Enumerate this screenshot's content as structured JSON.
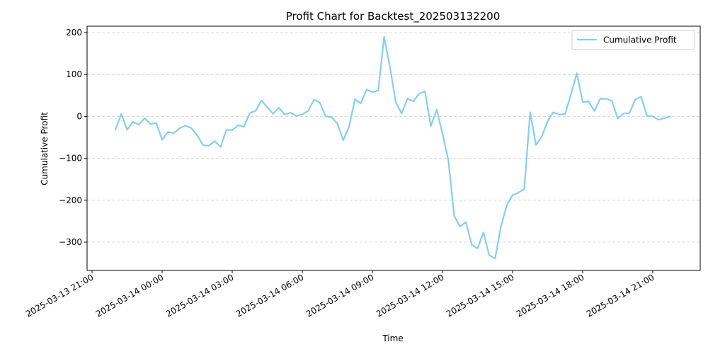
{
  "chart_data": {
    "type": "line",
    "title": "Profit Chart for Backtest_202503132200",
    "xlabel": "Time",
    "ylabel": "Cumulative Profit",
    "ylim": [
      -365,
      218
    ],
    "y_ticks": [
      -300,
      -200,
      -100,
      0,
      100,
      200
    ],
    "y_tick_labels": [
      "−300",
      "−200",
      "−100",
      "0",
      "100",
      "200"
    ],
    "x_ticks": [
      "2025-03-13 21:00",
      "2025-03-14 00:00",
      "2025-03-14 03:00",
      "2025-03-14 06:00",
      "2025-03-14 09:00",
      "2025-03-14 12:00",
      "2025-03-14 15:00",
      "2025-03-14 18:00",
      "2025-03-14 21:00"
    ],
    "grid": "y-dashed",
    "legend_position": "upper-right",
    "line_color": "#87ceeb",
    "x_start": "2025-03-13 22:00",
    "x_step_minutes": 15,
    "series": [
      {
        "name": "Cumulative Profit",
        "values": [
          -32,
          6,
          -32,
          -13,
          -20,
          -4,
          -18,
          -16,
          -56,
          -37,
          -40,
          -28,
          -22,
          -28,
          -45,
          -69,
          -70,
          -59,
          -73,
          -32,
          -33,
          -21,
          -25,
          8,
          13,
          38,
          22,
          6,
          21,
          4,
          9,
          1,
          5,
          13,
          40,
          33,
          0,
          -2,
          -17,
          -57,
          -25,
          41,
          31,
          64,
          58,
          62,
          190,
          118,
          34,
          7,
          42,
          36,
          54,
          60,
          -23,
          16,
          -41,
          -105,
          -237,
          -263,
          -252,
          -306,
          -315,
          -277,
          -331,
          -339,
          -263,
          -212,
          -188,
          -182,
          -173,
          10,
          -68,
          -48,
          -11,
          10,
          4,
          6,
          53,
          103,
          34,
          36,
          13,
          42,
          42,
          37,
          -5,
          7,
          8,
          40,
          47,
          1,
          0,
          -8,
          -4,
          0
        ]
      }
    ]
  }
}
